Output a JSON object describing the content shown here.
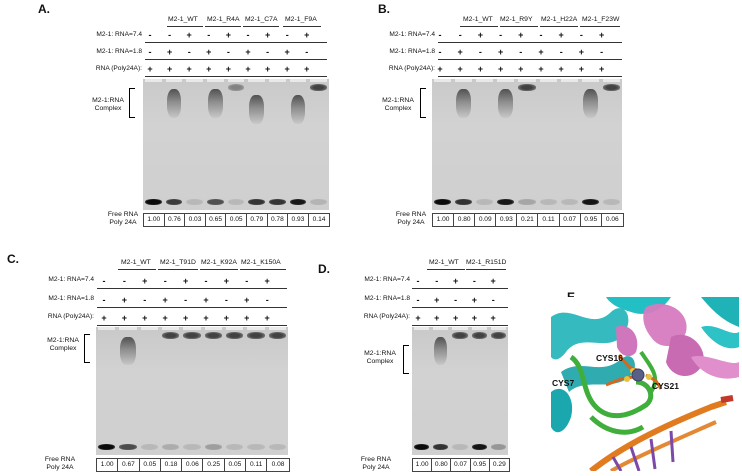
{
  "panels": {
    "A": {
      "label": "A.",
      "mutants": [
        "M2-1_WT",
        "M2-1_R4A",
        "M2-1_C7A",
        "M2-1_F9A"
      ],
      "row_labels": [
        "M2-1: RNA=7.4",
        "M2-1: RNA=1.8",
        "RNA (Poly24A):"
      ],
      "rows": [
        [
          "-",
          "-",
          "+",
          "-",
          "+",
          "-",
          "+",
          "-",
          "+"
        ],
        [
          "-",
          "+",
          "-",
          "+",
          "-",
          "+",
          "-",
          "+",
          "-"
        ],
        [
          "+",
          "+",
          "+",
          "+",
          "+",
          "+",
          "+",
          "+",
          "+"
        ]
      ],
      "complex_label": "M2-1:RNA\nComplex",
      "free_label": "Free RNA\nPoly 24A",
      "quant": [
        "1.00",
        "0.76",
        "0.03",
        "0.65",
        "0.05",
        "0.79",
        "0.78",
        "0.93",
        "0.14"
      ]
    },
    "B": {
      "label": "B.",
      "mutants": [
        "M2-1_WT",
        "M2-1_R9Y",
        "M2-1_H22A",
        "M2-1_F23W"
      ],
      "row_labels": [
        "M2-1: RNA=7.4",
        "M2-1: RNA=1.8",
        "RNA (Poly24A):"
      ],
      "rows": [
        [
          "-",
          "-",
          "+",
          "-",
          "+",
          "-",
          "+",
          "-",
          "+"
        ],
        [
          "-",
          "+",
          "-",
          "+",
          "-",
          "+",
          "-",
          "+",
          "-"
        ],
        [
          "+",
          "+",
          "+",
          "+",
          "+",
          "+",
          "+",
          "+",
          "+"
        ]
      ],
      "complex_label": "M2-1:RNA\nComplex",
      "free_label": "Free RNA\nPoly 24A",
      "quant": [
        "1.00",
        "0.80",
        "0.09",
        "0.93",
        "0.21",
        "0.11",
        "0.07",
        "0.95",
        "0.06"
      ]
    },
    "C": {
      "label": "C.",
      "mutants": [
        "M2-1_WT",
        "M2-1_T91D",
        "M2-1_K92A",
        "M2-1_K150A"
      ],
      "row_labels": [
        "M2-1: RNA=7.4",
        "M2-1: RNA=1.8",
        "RNA (Poly24A):"
      ],
      "rows": [
        [
          "-",
          "-",
          "+",
          "-",
          "+",
          "-",
          "+",
          "-",
          "+"
        ],
        [
          "-",
          "+",
          "-",
          "+",
          "-",
          "+",
          "-",
          "+",
          "-"
        ],
        [
          "+",
          "+",
          "+",
          "+",
          "+",
          "+",
          "+",
          "+",
          "+"
        ]
      ],
      "complex_label": "M2-1:RNA\nComplex",
      "free_label": "Free RNA\nPoly 24A",
      "quant": [
        "1.00",
        "0.67",
        "0.05",
        "0.18",
        "0.06",
        "0.25",
        "0.05",
        "0.11",
        "0.08"
      ]
    },
    "D": {
      "label": "D.",
      "mutants": [
        "M2-1_WT",
        "M2-1_R151D"
      ],
      "row_labels": [
        "M2-1: RNA=7.4",
        "M2-1: RNA=1.8",
        "RNA (Poly24A):"
      ],
      "rows": [
        [
          "-",
          "-",
          "+",
          "-",
          "+"
        ],
        [
          "-",
          "+",
          "-",
          "+",
          "-"
        ],
        [
          "+",
          "+",
          "+",
          "+",
          "+"
        ]
      ],
      "complex_label": "M2-1:RNA\nComplex",
      "free_label": "Free RNA\nPoly 24A",
      "quant": [
        "1.00",
        "0.80",
        "0.07",
        "0.95",
        "0.29"
      ]
    },
    "E": {
      "label": "E.",
      "residues": [
        "CYS16",
        "CYS7",
        "CYS21"
      ]
    }
  },
  "colors": {
    "gel_bg": "#cdcdcd",
    "band": "#111111",
    "helix_cyan": "#1fb3b8",
    "helix_pink": "#d67bc0",
    "loop_green": "#3fae3a",
    "sidechain_orange": "#d2691e",
    "rna_orange": "#e07b1f",
    "rna_purple": "#7b4aa8",
    "zinc": "#5a5f86"
  }
}
